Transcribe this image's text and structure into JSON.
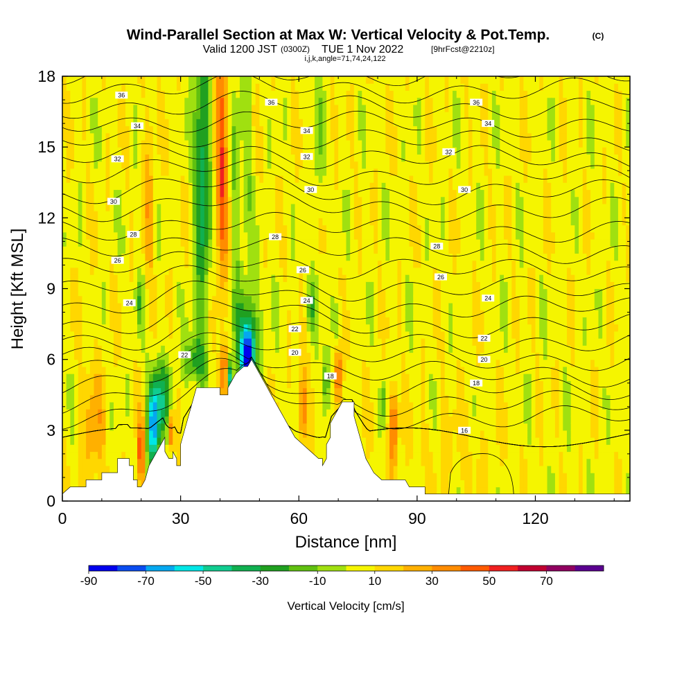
{
  "titles": {
    "main": "Wind-Parallel Section at Max W: Vertical Velocity & Pot.Temp.",
    "main_suffix": "(C)",
    "valid_prefix": "Valid 1200 JST",
    "valid_utc": "(0300Z)",
    "valid_date": "TUE 1 Nov 2022",
    "forecast": "[9hrFcst@2210z]",
    "indices": "i,j,k,angle=71,74,24,122"
  },
  "chart_data": {
    "type": "heatmap",
    "title": "Wind-Parallel Section at Max W: Vertical Velocity & Pot.Temp.",
    "xlabel": "Distance [nm]",
    "ylabel": "Height [Kft MSL]",
    "xlim": [
      0,
      144
    ],
    "ylim": [
      0,
      18
    ],
    "x_ticks": [
      0,
      30,
      60,
      90,
      120
    ],
    "y_ticks": [
      0,
      3,
      6,
      9,
      12,
      15,
      18
    ],
    "colorbar": {
      "label": "Vertical Velocity [cm/s]",
      "tick_labels": [
        -90,
        -70,
        -50,
        -30,
        -10,
        10,
        30,
        50,
        70
      ],
      "levels": [
        -90,
        -80,
        -70,
        -60,
        -50,
        -40,
        -30,
        -20,
        -10,
        0,
        10,
        20,
        30,
        40,
        50,
        60,
        70,
        80
      ],
      "colors": [
        "#0000ee",
        "#0a4cf0",
        "#05a8f0",
        "#00e6e6",
        "#10cc90",
        "#10b050",
        "#20a020",
        "#60c010",
        "#a0e010",
        "#f5f500",
        "#ffd700",
        "#ffb000",
        "#ff8c00",
        "#ff5a00",
        "#f02020",
        "#c00030",
        "#900060",
        "#5a0090"
      ]
    },
    "terrain": [
      [
        0,
        0.3
      ],
      [
        2,
        0.6
      ],
      [
        6,
        0.6
      ],
      [
        6,
        0.9
      ],
      [
        10,
        0.9
      ],
      [
        10,
        1.2
      ],
      [
        14,
        1.2
      ],
      [
        14,
        1.8
      ],
      [
        17,
        1.8
      ],
      [
        17,
        1.5
      ],
      [
        18,
        1.5
      ],
      [
        18,
        0.9
      ],
      [
        19,
        0.9
      ],
      [
        19,
        0.6
      ],
      [
        20,
        0.6
      ],
      [
        21,
        0.9
      ],
      [
        22,
        1.5
      ],
      [
        23,
        1.8
      ],
      [
        24,
        2.1
      ],
      [
        25,
        2.4
      ],
      [
        26,
        2.7
      ],
      [
        26,
        2.1
      ],
      [
        27,
        1.8
      ],
      [
        28,
        1.8
      ],
      [
        28,
        2.1
      ],
      [
        29,
        1.8
      ],
      [
        29,
        1.5
      ],
      [
        30,
        1.5
      ],
      [
        30,
        2.4
      ],
      [
        31,
        3.0
      ],
      [
        32,
        3.6
      ],
      [
        33,
        4.2
      ],
      [
        34,
        4.8
      ],
      [
        40,
        4.8
      ],
      [
        40,
        4.5
      ],
      [
        41,
        4.5
      ],
      [
        42,
        4.5
      ],
      [
        42,
        4.8
      ],
      [
        43,
        5.1
      ],
      [
        44,
        5.4
      ],
      [
        46,
        5.7
      ],
      [
        47,
        5.7
      ],
      [
        48,
        6.0
      ],
      [
        49,
        5.7
      ],
      [
        50,
        5.4
      ],
      [
        51,
        5.1
      ],
      [
        52,
        4.8
      ],
      [
        53,
        4.5
      ],
      [
        54,
        4.2
      ],
      [
        55,
        3.9
      ],
      [
        56,
        3.6
      ],
      [
        57,
        3.3
      ],
      [
        58,
        3.0
      ],
      [
        59,
        2.7
      ],
      [
        61,
        2.4
      ],
      [
        63,
        2.1
      ],
      [
        65,
        1.8
      ],
      [
        66,
        1.8
      ],
      [
        66,
        1.5
      ],
      [
        67,
        1.8
      ],
      [
        67,
        2.4
      ],
      [
        68,
        2.7
      ],
      [
        68,
        3.3
      ],
      [
        69,
        3.6
      ],
      [
        70,
        3.9
      ],
      [
        71,
        4.2
      ],
      [
        74,
        4.2
      ],
      [
        74,
        3.6
      ],
      [
        75,
        3.0
      ],
      [
        76,
        2.4
      ],
      [
        77,
        1.8
      ],
      [
        78,
        1.5
      ],
      [
        79,
        1.2
      ],
      [
        81,
        0.9
      ],
      [
        84,
        0.9
      ],
      [
        87,
        0.9
      ],
      [
        88,
        0.6
      ],
      [
        92,
        0.6
      ],
      [
        92,
        0.3
      ],
      [
        144,
        0.3
      ]
    ],
    "contours": [
      {
        "label": "16",
        "shape": "low_inversion",
        "labels_at": [
          [
            102,
            3.0
          ]
        ]
      },
      {
        "label": "18",
        "shape": "terrain_following",
        "labels_at": [
          [
            68,
            5.3
          ],
          [
            105,
            5.0
          ]
        ]
      },
      {
        "label": "20",
        "shape": "terrain_following",
        "labels_at": [
          [
            59,
            6.3
          ],
          [
            107,
            6.0
          ]
        ]
      },
      {
        "label": "22",
        "shape": "terrain_following",
        "labels_at": [
          [
            31,
            6.2
          ],
          [
            59,
            7.3
          ],
          [
            107,
            6.9
          ]
        ]
      },
      {
        "label": "24",
        "shape": "wave",
        "labels_at": [
          [
            17,
            8.4
          ],
          [
            62,
            8.5
          ],
          [
            108,
            8.6
          ]
        ]
      },
      {
        "label": "26",
        "shape": "wave",
        "labels_at": [
          [
            14,
            10.2
          ],
          [
            61,
            9.8
          ],
          [
            96,
            9.5
          ]
        ]
      },
      {
        "label": "28",
        "shape": "wave",
        "labels_at": [
          [
            18,
            11.3
          ],
          [
            54,
            11.2
          ],
          [
            95,
            10.8
          ]
        ]
      },
      {
        "label": "30",
        "shape": "wave",
        "labels_at": [
          [
            13,
            12.7
          ],
          [
            63,
            13.2
          ],
          [
            102,
            13.2
          ]
        ]
      },
      {
        "label": "32",
        "shape": "wave",
        "labels_at": [
          [
            14,
            14.5
          ],
          [
            62,
            14.6
          ],
          [
            98,
            14.8
          ]
        ]
      },
      {
        "label": "34",
        "shape": "wave",
        "labels_at": [
          [
            19,
            15.9
          ],
          [
            62,
            15.7
          ],
          [
            108,
            16.0
          ]
        ]
      },
      {
        "label": "36",
        "shape": "wave",
        "labels_at": [
          [
            15,
            17.2
          ],
          [
            53,
            16.9
          ],
          [
            105,
            16.9
          ]
        ]
      }
    ]
  },
  "labels": {
    "xlabel": "Distance [nm]",
    "ylabel": "Height [Kft MSL]",
    "x_ticks": [
      "0",
      "30",
      "60",
      "90",
      "120"
    ],
    "y_ticks": [
      "0",
      "3",
      "6",
      "9",
      "12",
      "15",
      "18"
    ],
    "colorbar_title": "Vertical Velocity [cm/s]",
    "colorbar_ticks": [
      "-90",
      "-70",
      "-50",
      "-30",
      "-10",
      "10",
      "30",
      "50",
      "70"
    ]
  }
}
